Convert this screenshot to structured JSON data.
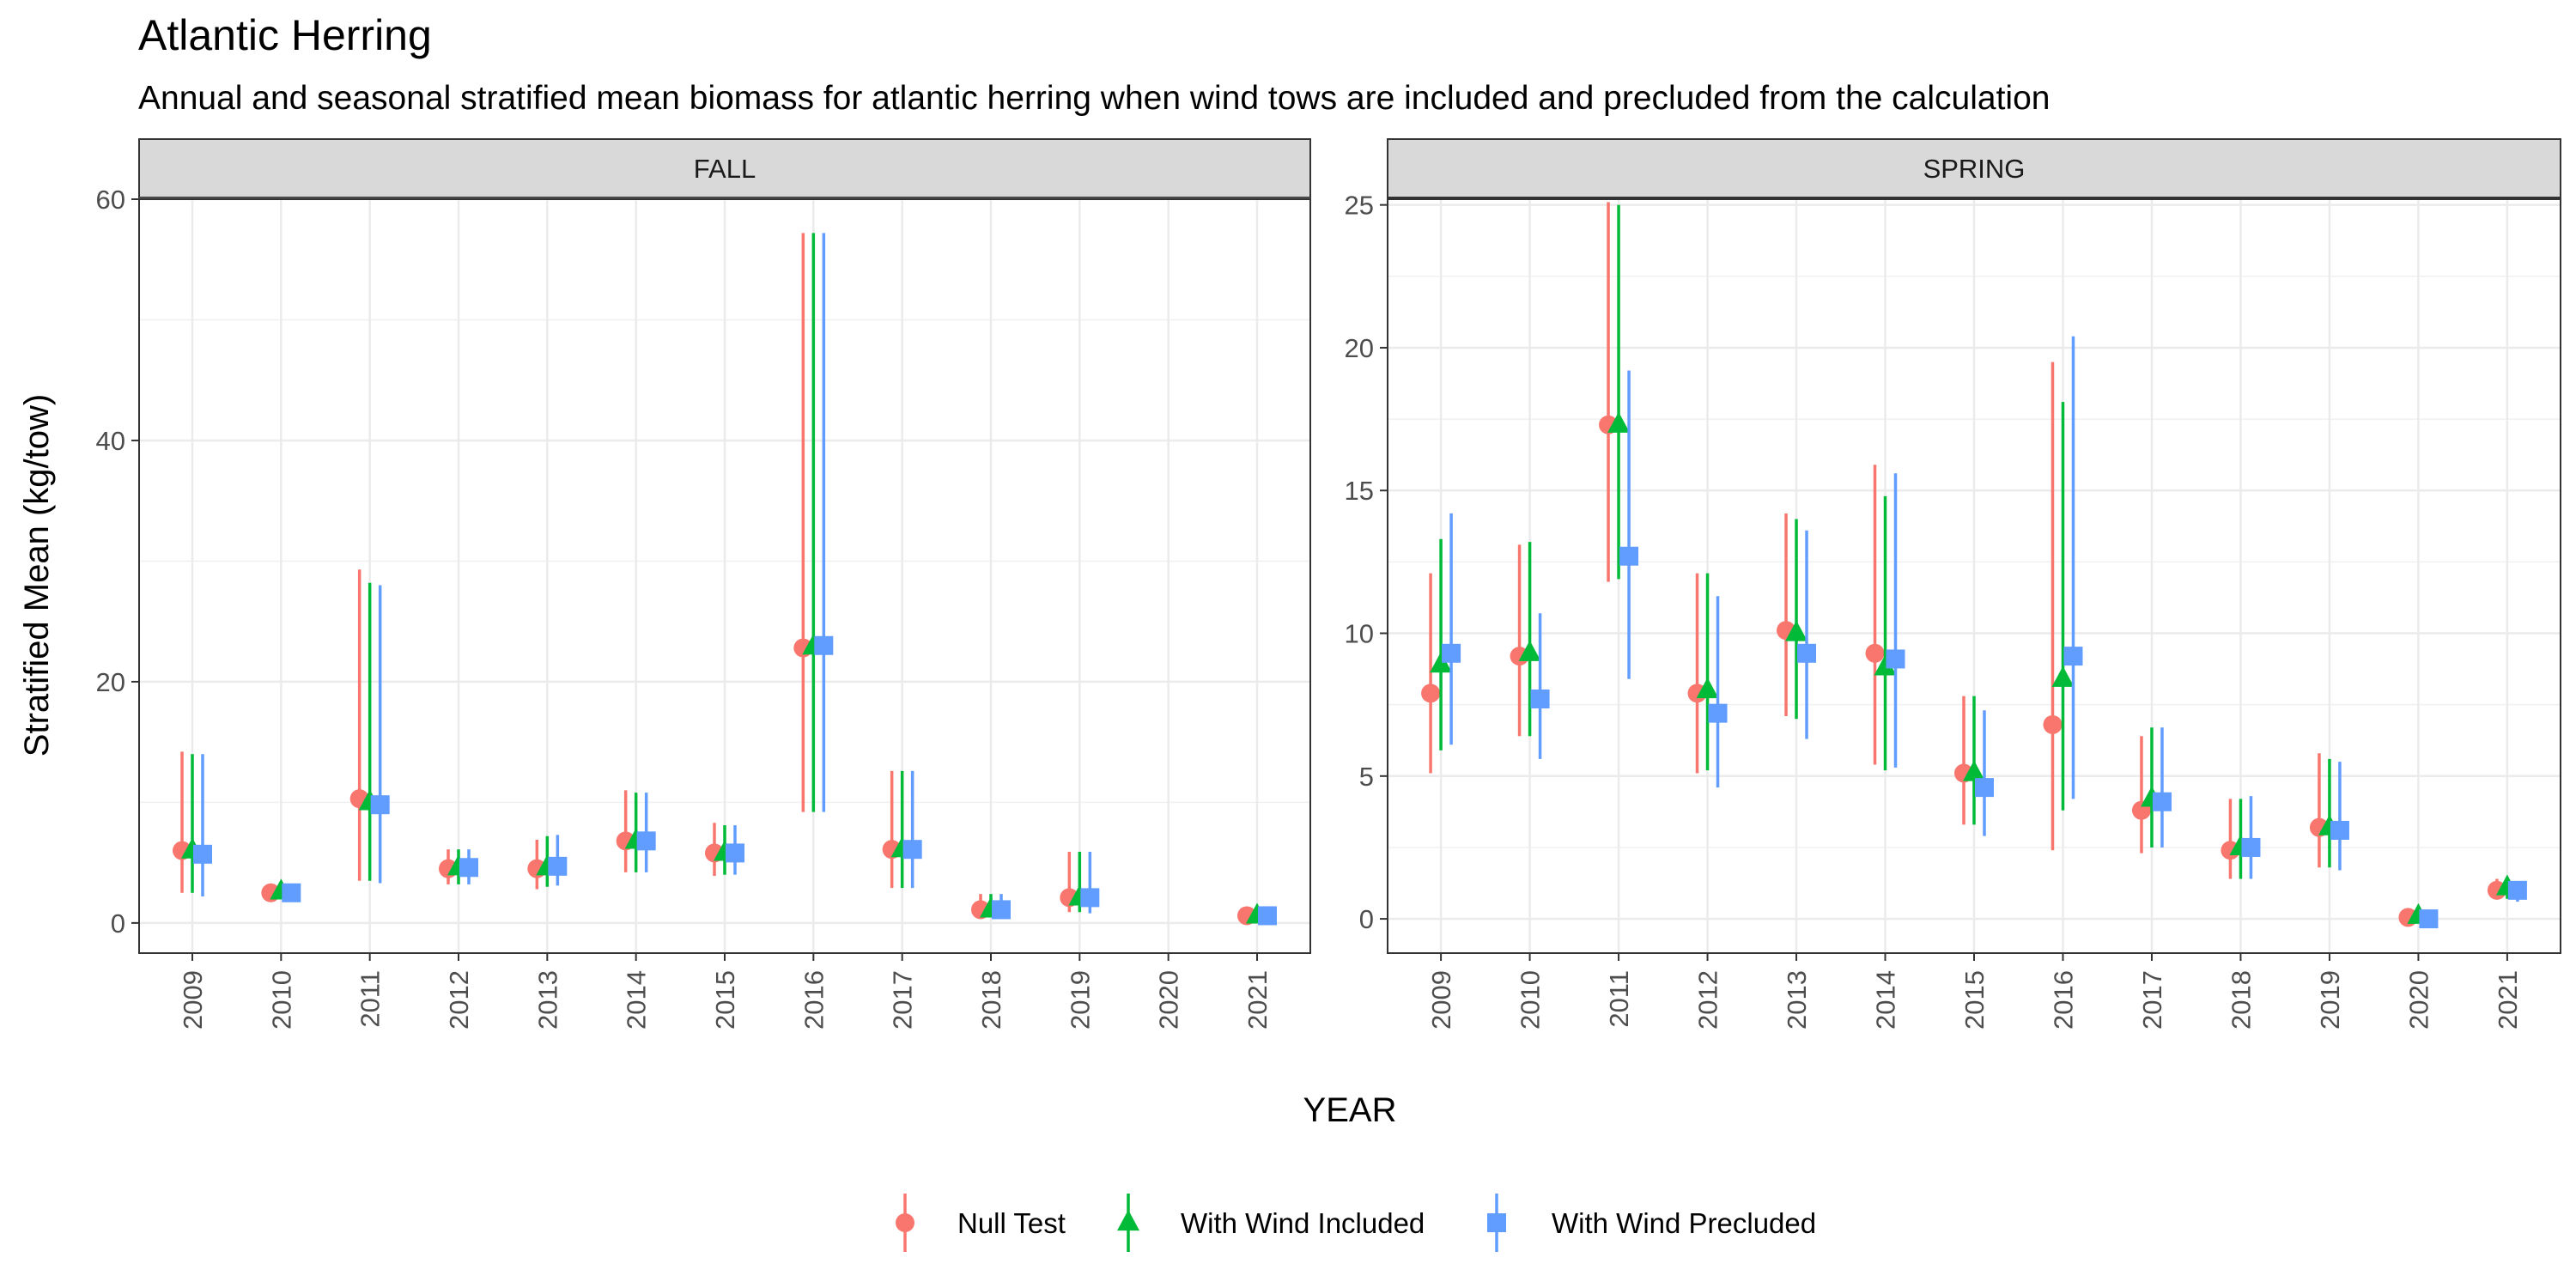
{
  "title": "Atlantic Herring",
  "subtitle": "Annual and seasonal stratified mean biomass for atlantic herring when wind tows are included and precluded from the calculation",
  "xlabel": "YEAR",
  "ylabel": "Stratified Mean (kg/tow)",
  "colors": {
    "null": "#F8766D",
    "included": "#00BA38",
    "precluded": "#619CFF"
  },
  "legend": {
    "placement": "bottom",
    "items": [
      {
        "key": "null",
        "label": "Null Test",
        "shape": "circle"
      },
      {
        "key": "included",
        "label": "With Wind Included",
        "shape": "triangle"
      },
      {
        "key": "precluded",
        "label": "With Wind Precluded",
        "shape": "square"
      }
    ]
  },
  "chart_data": {
    "type": "scatter",
    "title": "Atlantic Herring",
    "xlabel": "YEAR",
    "ylabel": "Stratified Mean (kg/tow)",
    "categories": [
      "2009",
      "2010",
      "2011",
      "2012",
      "2013",
      "2014",
      "2015",
      "2016",
      "2017",
      "2018",
      "2019",
      "2020",
      "2021"
    ],
    "panels": [
      {
        "name": "FALL",
        "ylim": [
          -2.5,
          60
        ],
        "yticks": [
          0,
          20,
          40,
          60
        ],
        "series": [
          {
            "name": "Null Test",
            "key": "null",
            "values": [
              6.0,
              2.5,
              10.3,
              4.5,
              4.5,
              6.8,
              5.8,
              22.8,
              6.1,
              1.1,
              2.1,
              null,
              0.6
            ],
            "lower": [
              2.5,
              2.0,
              3.5,
              3.2,
              2.8,
              4.2,
              3.9,
              9.2,
              2.9,
              0.5,
              0.9,
              null,
              0.4
            ],
            "upper": [
              14.2,
              3.2,
              29.3,
              6.1,
              6.9,
              11.0,
              8.3,
              57.2,
              12.6,
              2.4,
              5.9,
              null,
              0.8
            ]
          },
          {
            "name": "With Wind Included",
            "key": "included",
            "values": [
              6.0,
              2.6,
              10.0,
              4.6,
              4.6,
              6.8,
              5.8,
              22.9,
              6.1,
              1.1,
              2.1,
              null,
              0.6
            ],
            "lower": [
              2.5,
              2.0,
              3.5,
              3.2,
              3.0,
              4.2,
              4.0,
              9.2,
              2.9,
              0.5,
              0.9,
              null,
              0.4
            ],
            "upper": [
              14.0,
              3.2,
              28.2,
              6.1,
              7.2,
              10.8,
              8.1,
              57.2,
              12.6,
              2.4,
              5.9,
              null,
              0.8
            ]
          },
          {
            "name": "With Wind Precluded",
            "key": "precluded",
            "values": [
              5.7,
              2.5,
              9.8,
              4.6,
              4.7,
              6.8,
              5.8,
              23.0,
              6.1,
              1.1,
              2.1,
              null,
              0.6
            ],
            "lower": [
              2.2,
              1.9,
              3.3,
              3.2,
              3.1,
              4.2,
              4.0,
              9.2,
              2.9,
              0.5,
              0.8,
              null,
              0.4
            ],
            "upper": [
              14.0,
              3.1,
              28.0,
              6.1,
              7.3,
              10.8,
              8.1,
              57.2,
              12.6,
              2.4,
              5.9,
              null,
              0.8
            ]
          }
        ]
      },
      {
        "name": "SPRING",
        "ylim": [
          -1.2,
          25.2
        ],
        "yticks": [
          0,
          5,
          10,
          15,
          20,
          25
        ],
        "series": [
          {
            "name": "Null Test",
            "key": "null",
            "values": [
              7.9,
              9.2,
              17.3,
              7.9,
              10.1,
              9.3,
              5.1,
              6.8,
              3.8,
              2.4,
              3.2,
              0.05,
              1.0
            ],
            "lower": [
              5.1,
              6.4,
              11.8,
              5.1,
              7.1,
              5.4,
              3.3,
              2.4,
              2.3,
              1.4,
              1.8,
              0.0,
              0.7
            ],
            "upper": [
              12.1,
              13.1,
              25.1,
              12.1,
              14.2,
              15.9,
              7.8,
              19.5,
              6.4,
              4.2,
              5.8,
              0.1,
              1.4
            ]
          },
          {
            "name": "With Wind Included",
            "key": "included",
            "values": [
              8.9,
              9.3,
              17.3,
              8.0,
              10.0,
              8.8,
              5.1,
              8.4,
              4.2,
              2.5,
              3.2,
              0.1,
              1.1
            ],
            "lower": [
              5.9,
              6.4,
              11.9,
              5.2,
              7.0,
              5.2,
              3.3,
              3.8,
              2.5,
              1.4,
              1.8,
              0.0,
              0.7
            ],
            "upper": [
              13.3,
              13.2,
              25.0,
              12.1,
              14.0,
              14.8,
              7.8,
              18.1,
              6.7,
              4.2,
              5.6,
              0.2,
              1.4
            ]
          },
          {
            "name": "With Wind Precluded",
            "key": "precluded",
            "values": [
              9.3,
              7.7,
              12.7,
              7.2,
              9.3,
              9.1,
              4.6,
              9.2,
              4.1,
              2.5,
              3.1,
              0.0,
              1.0
            ],
            "lower": [
              6.1,
              5.6,
              8.4,
              4.6,
              6.3,
              5.3,
              2.9,
              4.2,
              2.5,
              1.4,
              1.7,
              0.0,
              0.6
            ],
            "upper": [
              14.2,
              10.7,
              19.2,
              11.3,
              13.6,
              15.6,
              7.3,
              20.4,
              6.7,
              4.3,
              5.5,
              0.1,
              1.3
            ]
          }
        ]
      }
    ],
    "grid": true,
    "legend": "bottom"
  }
}
